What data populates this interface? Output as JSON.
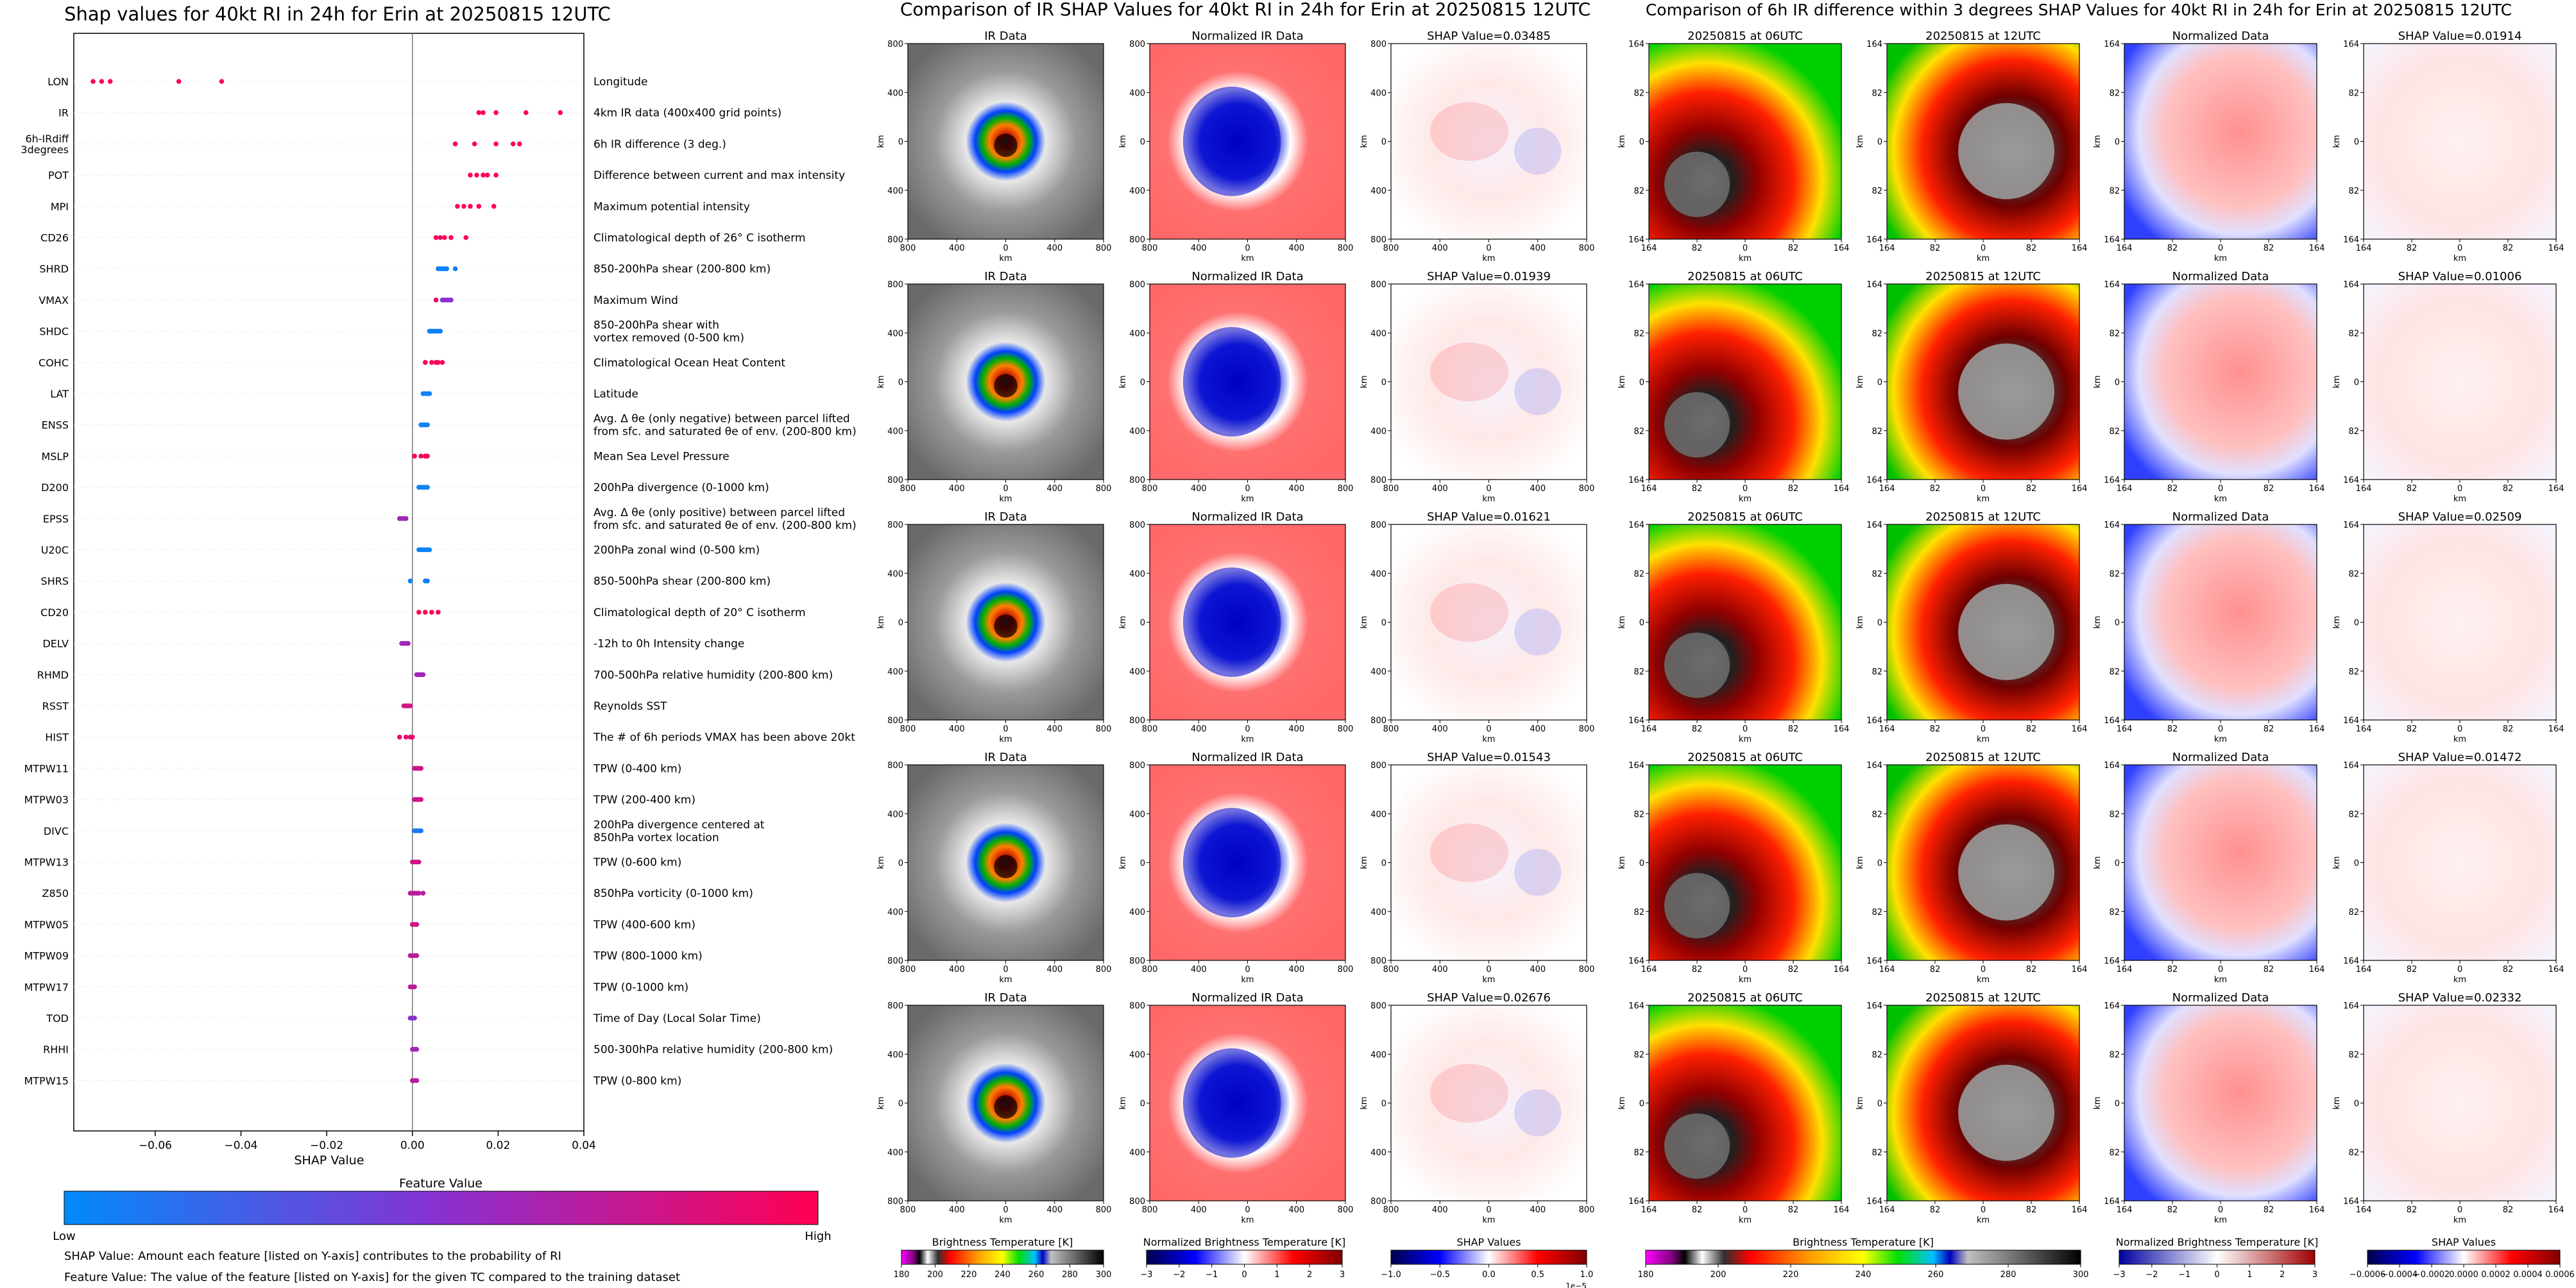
{
  "colors": {
    "shap_low": "#008afb",
    "shap_mid": "#8a30d0",
    "shap_high": "#ff0052",
    "sat_base": "#808080",
    "norm_pos": "#ff7070",
    "norm_neg": "#0000d0"
  },
  "left_panel": {
    "title": "Shap values for 40kt RI in 24h for Erin at 20250815 12UTC",
    "xlabel": "SHAP Value",
    "colorbar_title": "Feature Value",
    "colorbar_low": "Low",
    "colorbar_high": "High",
    "note1": "SHAP Value: Amount each feature [listed on Y-axis] contributes to the probability of RI",
    "note2": "Feature Value: The value of the feature [listed on Y-axis] for the given TC compared to the training dataset"
  },
  "chart_data": [
    {
      "type": "scatter",
      "title": "Shap values for 40kt RI in 24h for Erin at 20250815 12UTC",
      "xlabel": "SHAP Value",
      "ylabel": "",
      "xlim": [
        -0.079,
        0.04
      ],
      "xticks": [
        -0.06,
        -0.04,
        -0.02,
        0.0,
        0.02,
        0.04
      ],
      "xtick_labels": [
        "−0.06",
        "−0.04",
        "−0.02",
        "0.00",
        "0.02",
        "0.04"
      ],
      "grid": false,
      "features": [
        {
          "name": "LON",
          "desc": "Longitude",
          "points": [
            [
              -0.0745,
              1
            ],
            [
              -0.0725,
              1
            ],
            [
              -0.0705,
              1
            ],
            [
              -0.0545,
              1
            ],
            [
              -0.0445,
              1
            ]
          ]
        },
        {
          "name": "IR",
          "desc": "4km IR data (400x400 grid points)",
          "points": [
            [
              0.0155,
              1
            ],
            [
              0.0165,
              1
            ],
            [
              0.0195,
              1
            ],
            [
              0.0265,
              1
            ],
            [
              0.0345,
              1
            ]
          ]
        },
        {
          "name": "6h-IRdiff\n3degrees",
          "desc": "6h IR difference (3 deg.)",
          "points": [
            [
              0.01,
              1
            ],
            [
              0.0145,
              1
            ],
            [
              0.0195,
              1
            ],
            [
              0.0235,
              1
            ],
            [
              0.025,
              1
            ]
          ]
        },
        {
          "name": "POT",
          "desc": "Difference between current and max intensity",
          "points": [
            [
              0.0135,
              1
            ],
            [
              0.015,
              1
            ],
            [
              0.0165,
              1
            ],
            [
              0.0175,
              1
            ],
            [
              0.0195,
              1
            ]
          ]
        },
        {
          "name": "MPI",
          "desc": "Maximum potential intensity",
          "points": [
            [
              0.0105,
              1
            ],
            [
              0.012,
              1
            ],
            [
              0.0135,
              1
            ],
            [
              0.0155,
              1
            ],
            [
              0.019,
              1
            ]
          ]
        },
        {
          "name": "CD26",
          "desc": "Climatological depth of 26° C isotherm",
          "points": [
            [
              0.0055,
              1
            ],
            [
              0.0065,
              0.9
            ],
            [
              0.0075,
              1
            ],
            [
              0.009,
              1
            ],
            [
              0.0125,
              1
            ]
          ]
        },
        {
          "name": "SHRD",
          "desc": "850-200hPa shear (200-800 km)",
          "points": [
            [
              0.006,
              0.05
            ],
            [
              0.0065,
              0.05
            ],
            [
              0.007,
              0.05
            ],
            [
              0.0075,
              0.05
            ],
            [
              0.008,
              0.05
            ],
            [
              0.01,
              0.1
            ]
          ]
        },
        {
          "name": "VMAX",
          "desc": "Maximum Wind",
          "points": [
            [
              0.0055,
              0.9
            ],
            [
              0.007,
              0.5
            ],
            [
              0.0075,
              0.5
            ],
            [
              0.008,
              0.5
            ],
            [
              0.0085,
              0.5
            ],
            [
              0.009,
              0.5
            ]
          ]
        },
        {
          "name": "SHDC",
          "desc": "850-200hPa shear with\nvortex removed (0-500 km)",
          "points": [
            [
              0.004,
              0.05
            ],
            [
              0.0045,
              0.05
            ],
            [
              0.005,
              0.05
            ],
            [
              0.0055,
              0.05
            ],
            [
              0.006,
              0.05
            ],
            [
              0.0065,
              0.05
            ]
          ]
        },
        {
          "name": "COHC",
          "desc": "Climatological Ocean Heat Content",
          "points": [
            [
              0.003,
              1
            ],
            [
              0.0045,
              0.95
            ],
            [
              0.0055,
              1
            ],
            [
              0.006,
              1
            ],
            [
              0.007,
              1
            ]
          ]
        },
        {
          "name": "LAT",
          "desc": "Latitude",
          "points": [
            [
              0.0025,
              0.05
            ],
            [
              0.003,
              0.05
            ],
            [
              0.0035,
              0.05
            ],
            [
              0.004,
              0.05
            ]
          ]
        },
        {
          "name": "ENSS",
          "desc": "Avg. Δ θe (only negative) between parcel lifted\nfrom sfc. and saturated θe of env. (200-800 km)",
          "points": [
            [
              0.002,
              0.05
            ],
            [
              0.0025,
              0.05
            ],
            [
              0.003,
              0.05
            ],
            [
              0.0035,
              0.05
            ]
          ]
        },
        {
          "name": "MSLP",
          "desc": "Mean Sea Level Pressure",
          "points": [
            [
              0.0005,
              1
            ],
            [
              0.002,
              0.95
            ],
            [
              0.003,
              1
            ],
            [
              0.0035,
              0.95
            ]
          ]
        },
        {
          "name": "D200",
          "desc": "200hPa divergence (0-1000 km)",
          "points": [
            [
              0.0015,
              0.05
            ],
            [
              0.002,
              0.05
            ],
            [
              0.0025,
              0.05
            ],
            [
              0.003,
              0.05
            ],
            [
              0.0035,
              0.05
            ]
          ]
        },
        {
          "name": "EPSS",
          "desc": "Avg. Δ θe (only positive) between parcel lifted\nfrom sfc. and saturated θe of env. (200-800 km)",
          "points": [
            [
              -0.003,
              0.6
            ],
            [
              -0.0025,
              0.6
            ],
            [
              -0.002,
              0.6
            ],
            [
              -0.0015,
              0.6
            ]
          ]
        },
        {
          "name": "U20C",
          "desc": "200hPa zonal wind (0-500 km)",
          "points": [
            [
              0.0015,
              0.05
            ],
            [
              0.002,
              0.05
            ],
            [
              0.0025,
              0.05
            ],
            [
              0.003,
              0.05
            ],
            [
              0.0035,
              0.05
            ],
            [
              0.004,
              0.05
            ]
          ]
        },
        {
          "name": "SHRS",
          "desc": "850-500hPa shear (200-800 km)",
          "points": [
            [
              -0.0005,
              0.05
            ],
            [
              0.003,
              0.05
            ],
            [
              0.0035,
              0.05
            ]
          ]
        },
        {
          "name": "CD20",
          "desc": "Climatological depth of 20° C isotherm",
          "points": [
            [
              0.0015,
              1
            ],
            [
              0.003,
              1
            ],
            [
              0.0045,
              1
            ],
            [
              0.006,
              1
            ]
          ]
        },
        {
          "name": "DELV",
          "desc": "-12h to 0h Intensity change",
          "points": [
            [
              -0.0025,
              0.6
            ],
            [
              -0.002,
              0.6
            ],
            [
              -0.0015,
              0.6
            ],
            [
              -0.001,
              0.6
            ]
          ]
        },
        {
          "name": "RHMD",
          "desc": "700-500hPa relative humidity (200-800 km)",
          "points": [
            [
              0.001,
              0.6
            ],
            [
              0.0015,
              0.6
            ],
            [
              0.002,
              0.6
            ],
            [
              0.0025,
              0.6
            ]
          ]
        },
        {
          "name": "RSST",
          "desc": "Reynolds SST",
          "points": [
            [
              -0.002,
              0.8
            ],
            [
              -0.0015,
              0.8
            ],
            [
              -0.001,
              0.8
            ],
            [
              -0.0005,
              0.8
            ]
          ]
        },
        {
          "name": "HIST",
          "desc": "The # of 6h periods VMAX has been above 20kt",
          "points": [
            [
              -0.003,
              0.9
            ],
            [
              -0.0015,
              0.9
            ],
            [
              -0.0005,
              0.9
            ],
            [
              0.0,
              0.9
            ]
          ]
        },
        {
          "name": "MTPW11",
          "desc": "TPW (0-400 km)",
          "points": [
            [
              0.0005,
              0.8
            ],
            [
              0.001,
              0.8
            ],
            [
              0.0015,
              0.8
            ],
            [
              0.002,
              0.8
            ]
          ]
        },
        {
          "name": "MTPW03",
          "desc": "TPW (200-400 km)",
          "points": [
            [
              0.0005,
              0.8
            ],
            [
              0.001,
              0.8
            ],
            [
              0.0015,
              0.8
            ],
            [
              0.002,
              0.8
            ]
          ]
        },
        {
          "name": "DIVC",
          "desc": "200hPa divergence centered at\n850hPa vortex location",
          "points": [
            [
              0.0005,
              0.1
            ],
            [
              0.001,
              0.1
            ],
            [
              0.0015,
              0.1
            ],
            [
              0.002,
              0.1
            ]
          ]
        },
        {
          "name": "MTPW13",
          "desc": "TPW (0-600 km)",
          "points": [
            [
              0.0,
              0.8
            ],
            [
              0.0005,
              0.8
            ],
            [
              0.001,
              0.8
            ],
            [
              0.0015,
              0.8
            ]
          ]
        },
        {
          "name": "Z850",
          "desc": "850hPa vorticity (0-1000 km)",
          "points": [
            [
              -0.0005,
              0.7
            ],
            [
              0.0,
              0.7
            ],
            [
              0.0005,
              0.7
            ],
            [
              0.001,
              0.7
            ],
            [
              0.0015,
              0.7
            ],
            [
              0.0025,
              0.7
            ]
          ]
        },
        {
          "name": "MTPW05",
          "desc": "TPW (400-600 km)",
          "points": [
            [
              0.0,
              0.8
            ],
            [
              0.0005,
              0.8
            ],
            [
              0.001,
              0.8
            ]
          ]
        },
        {
          "name": "MTPW09",
          "desc": "TPW (800-1000 km)",
          "points": [
            [
              -0.0005,
              0.7
            ],
            [
              0.0,
              0.7
            ],
            [
              0.0005,
              0.7
            ],
            [
              0.001,
              0.7
            ]
          ]
        },
        {
          "name": "MTPW17",
          "desc": "TPW (0-1000 km)",
          "points": [
            [
              -0.0005,
              0.7
            ],
            [
              0.0,
              0.7
            ],
            [
              0.0005,
              0.7
            ]
          ]
        },
        {
          "name": "TOD",
          "desc": "Time of Day (Local Solar Time)",
          "points": [
            [
              -0.0005,
              0.5
            ],
            [
              0.0,
              0.5
            ],
            [
              0.0005,
              0.5
            ]
          ]
        },
        {
          "name": "RHHI",
          "desc": "500-300hPa relative humidity (200-800 km)",
          "points": [
            [
              0.0,
              0.6
            ],
            [
              0.0005,
              0.6
            ],
            [
              0.001,
              0.6
            ]
          ]
        },
        {
          "name": "MTPW15",
          "desc": "TPW (0-800 km)",
          "points": [
            [
              0.0,
              0.7
            ],
            [
              0.0005,
              0.7
            ],
            [
              0.001,
              0.7
            ]
          ]
        }
      ]
    },
    {
      "type": "heatmap",
      "title": "Comparison of IR SHAP Values for 40kt RI in 24h for Erin at 20250815 12UTC",
      "panel_titles": [
        "IR Data",
        "Normalized IR Data"
      ],
      "shap_titles": [
        "SHAP Value=0.03485",
        "SHAP Value=0.01939",
        "SHAP Value=0.01621",
        "SHAP Value=0.01543",
        "SHAP Value=0.02676"
      ],
      "xlabel": "km",
      "ylabel": "km",
      "tick_labels": [
        "800",
        "400",
        "0",
        "400",
        "800"
      ],
      "colorbars": [
        {
          "label": "Brightness Temperature [K]",
          "ticks": [
            "180",
            "200",
            "220",
            "240",
            "260",
            "280",
            "300"
          ]
        },
        {
          "label": "Normalized Brightness Temperature [K]",
          "ticks": [
            "−3",
            "−2",
            "−1",
            "0",
            "1",
            "2",
            "3"
          ]
        },
        {
          "label": "SHAP Values",
          "ticks": [
            "−1.0",
            "−0.5",
            "0.0",
            "0.5",
            "1.0"
          ],
          "multiplier": "1e−5"
        }
      ]
    },
    {
      "type": "heatmap",
      "title": "Comparison of 6h IR difference within 3 degrees SHAP Values for 40kt RI in 24h for Erin at 20250815 12UTC",
      "panel_titles": [
        "20250815 at 06UTC",
        "20250815 at 12UTC",
        "Normalized Data"
      ],
      "shap_titles": [
        "SHAP Value=0.01914",
        "SHAP Value=0.01006",
        "SHAP Value=0.02509",
        "SHAP Value=0.01472",
        "SHAP Value=0.02332"
      ],
      "xlabel": "km",
      "ylabel": "km",
      "tick_labels": [
        "164",
        "82",
        "0",
        "82",
        "164"
      ],
      "colorbars": [
        {
          "label": "Brightness Temperature [K]",
          "ticks": [
            "180",
            "200",
            "220",
            "240",
            "260",
            "280",
            "300"
          ]
        },
        {
          "label": "Normalized Brightness Temperature [K]",
          "ticks": [
            "−3",
            "−2",
            "−1",
            "0",
            "1",
            "2",
            "3"
          ]
        },
        {
          "label": "SHAP Values",
          "ticks": [
            "−0.0006",
            "−0.0004",
            "−0.0002",
            "0.0000",
            "0.0002",
            "0.0004",
            "0.0006"
          ]
        }
      ]
    }
  ]
}
